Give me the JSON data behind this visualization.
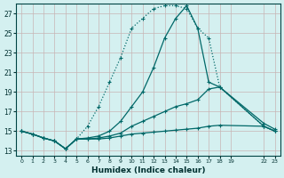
{
  "xlabel": "Humidex (Indice chaleur)",
  "bg_color": "#d4f0f0",
  "grid_color_major": "#c8b4b4",
  "line_color": "#006868",
  "xlim": [
    -0.5,
    23.5
  ],
  "ylim": [
    12.5,
    28.0
  ],
  "yticks": [
    13,
    15,
    17,
    19,
    21,
    23,
    25,
    27
  ],
  "curves": [
    {
      "x": [
        0,
        1,
        2,
        3,
        4,
        5,
        6,
        7,
        8,
        9,
        10,
        11,
        12,
        13,
        14,
        15,
        16,
        17,
        18,
        22,
        23
      ],
      "y": [
        15.0,
        14.7,
        14.3,
        14.0,
        13.2,
        14.2,
        15.5,
        17.5,
        20.0,
        22.5,
        25.5,
        26.5,
        27.5,
        27.8,
        27.8,
        27.5,
        25.5,
        24.5,
        19.5,
        15.5,
        15.0
      ],
      "style": ":",
      "marker": "+"
    },
    {
      "x": [
        0,
        1,
        2,
        3,
        4,
        5,
        6,
        7,
        8,
        9,
        10,
        11,
        12,
        13,
        14,
        15,
        16,
        17,
        18,
        22,
        23
      ],
      "y": [
        15.0,
        14.7,
        14.3,
        14.0,
        13.2,
        14.2,
        14.3,
        14.5,
        15.0,
        16.0,
        17.5,
        19.0,
        21.5,
        24.5,
        26.5,
        27.8,
        25.5,
        20.0,
        19.5,
        15.5,
        15.0
      ],
      "style": "-",
      "marker": "+"
    },
    {
      "x": [
        0,
        1,
        2,
        3,
        4,
        5,
        6,
        7,
        8,
        9,
        10,
        11,
        12,
        13,
        14,
        15,
        16,
        17,
        18,
        22,
        23
      ],
      "y": [
        15.0,
        14.7,
        14.3,
        14.0,
        13.2,
        14.2,
        14.2,
        14.3,
        14.5,
        14.8,
        15.5,
        16.0,
        16.5,
        17.0,
        17.5,
        17.8,
        18.2,
        19.3,
        19.5,
        15.8,
        15.2
      ],
      "style": "-",
      "marker": "+"
    },
    {
      "x": [
        0,
        1,
        2,
        3,
        4,
        5,
        6,
        7,
        8,
        9,
        10,
        11,
        12,
        13,
        14,
        15,
        16,
        17,
        18,
        22,
        23
      ],
      "y": [
        15.0,
        14.7,
        14.3,
        14.0,
        13.2,
        14.2,
        14.2,
        14.2,
        14.3,
        14.5,
        14.7,
        14.8,
        14.9,
        15.0,
        15.1,
        15.2,
        15.3,
        15.5,
        15.6,
        15.5,
        15.0
      ],
      "style": "-",
      "marker": "+"
    }
  ]
}
